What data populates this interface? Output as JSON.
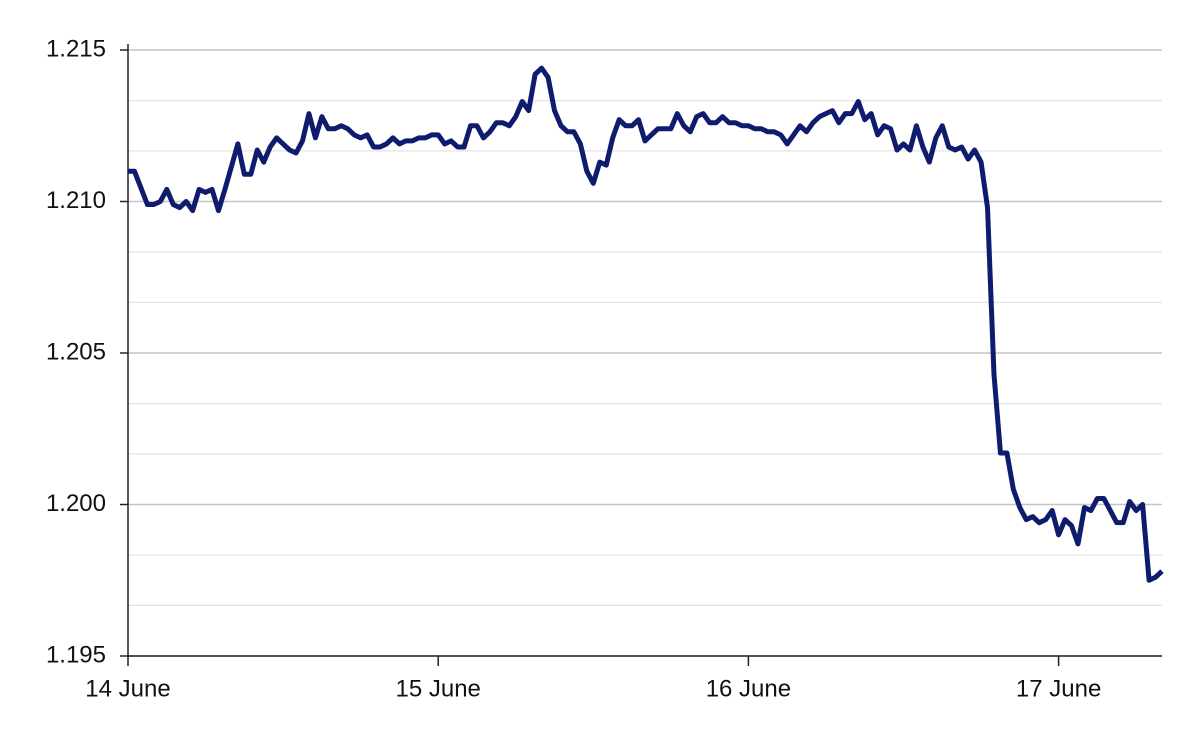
{
  "chart_data": {
    "type": "line",
    "x": [
      0,
      0.5,
      1.5,
      2,
      2.5,
      3,
      3.5,
      4,
      4.5,
      5,
      5.5,
      6,
      6.5,
      7,
      7.5,
      8.5,
      9,
      9.5,
      10,
      10.5,
      11,
      11.5,
      12,
      12.5,
      13,
      13.5,
      14,
      14.5,
      15,
      15.5,
      16,
      16.5,
      17,
      17.5,
      18,
      18.5,
      19,
      19.5,
      20,
      20.5,
      21,
      21.5,
      22,
      22.5,
      23,
      23.5,
      24,
      24.5,
      25,
      25.5,
      26,
      26.5,
      27,
      27.5,
      28,
      28.5,
      29,
      29.5,
      30,
      30.5,
      31,
      31.5,
      32,
      32.5,
      33,
      33.5,
      34,
      34.5,
      35,
      35.5,
      36,
      36.5,
      37,
      37.5,
      38,
      38.5,
      39,
      39.5,
      40,
      40.5,
      41,
      41.5,
      42,
      42.5,
      43,
      43.5,
      44,
      44.5,
      45,
      45.5,
      46,
      46.5,
      47,
      47.5,
      48,
      48.5,
      49,
      49.5,
      50,
      50.5,
      51,
      51.5,
      52,
      52.5,
      53,
      53.5,
      54,
      54.5,
      55,
      55.5,
      56,
      56.5,
      57,
      57.5,
      58,
      58.5,
      59,
      59.5,
      60,
      60.5,
      61,
      61.5,
      62,
      62.5,
      63,
      63.5,
      64,
      64.5,
      65,
      65.5,
      66,
      66.5,
      67,
      67.5,
      68,
      68.5,
      69,
      69.5,
      70,
      70.5,
      71,
      71.5,
      72,
      72.5,
      73,
      73.5,
      74,
      74.5,
      75,
      75.5,
      76,
      76.5,
      77,
      77.5,
      78,
      78.5,
      79,
      79.5,
      80
    ],
    "series": [
      {
        "color": "#0f1c6e",
        "values": [
          1.211,
          1.211,
          1.2099,
          1.2099,
          1.21,
          1.2104,
          1.2099,
          1.2098,
          1.21,
          1.2097,
          1.2104,
          1.2103,
          1.2104,
          1.2097,
          1.2104,
          1.2119,
          1.2109,
          1.2109,
          1.2117,
          1.2113,
          1.2118,
          1.2121,
          1.2119,
          1.2117,
          1.2116,
          1.212,
          1.2129,
          1.2121,
          1.2128,
          1.2124,
          1.2124,
          1.2125,
          1.2124,
          1.2122,
          1.2121,
          1.2122,
          1.2118,
          1.2118,
          1.2119,
          1.2121,
          1.2119,
          1.212,
          1.212,
          1.2121,
          1.2121,
          1.2122,
          1.2122,
          1.2119,
          1.212,
          1.2118,
          1.2118,
          1.2125,
          1.2125,
          1.2121,
          1.2123,
          1.2126,
          1.2126,
          1.2125,
          1.2128,
          1.2133,
          1.213,
          1.2142,
          1.2144,
          1.2141,
          1.213,
          1.2125,
          1.2123,
          1.2123,
          1.2119,
          1.211,
          1.2106,
          1.2113,
          1.2112,
          1.2121,
          1.2127,
          1.2125,
          1.2125,
          1.2127,
          1.212,
          1.2122,
          1.2124,
          1.2124,
          1.2124,
          1.2129,
          1.2125,
          1.2123,
          1.2128,
          1.2129,
          1.2126,
          1.2126,
          1.2128,
          1.2126,
          1.2126,
          1.2125,
          1.2125,
          1.2124,
          1.2124,
          1.2123,
          1.2123,
          1.2122,
          1.2119,
          1.2122,
          1.2125,
          1.2123,
          1.2126,
          1.2128,
          1.2129,
          1.213,
          1.2126,
          1.2129,
          1.2129,
          1.2133,
          1.2127,
          1.2129,
          1.2122,
          1.2125,
          1.2124,
          1.2117,
          1.2119,
          1.2117,
          1.2125,
          1.2118,
          1.2113,
          1.2121,
          1.2125,
          1.2118,
          1.2117,
          1.2118,
          1.2114,
          1.2117,
          1.2113,
          1.2098,
          1.2043,
          1.2017,
          1.2017,
          1.2005,
          1.1999,
          1.1995,
          1.1996,
          1.1994,
          1.1995,
          1.1998,
          1.199,
          1.1995,
          1.1993,
          1.1987,
          1.1999,
          1.1998,
          1.2002,
          1.2002,
          1.1998,
          1.1994,
          1.1994,
          1.2001,
          1.1998,
          1.2,
          1.1975,
          1.1976,
          1.1978
        ]
      }
    ],
    "xlim": [
      0,
      80
    ],
    "xticks": [
      {
        "value": 0,
        "label": "14 June"
      },
      {
        "value": 24,
        "label": "15 June"
      },
      {
        "value": 48,
        "label": "16 June"
      },
      {
        "value": 72,
        "label": "17 June"
      }
    ],
    "ylim": [
      1.195,
      1.215
    ],
    "yticks": [
      {
        "value": 1.195,
        "label": "1.195"
      },
      {
        "value": 1.2,
        "label": "1.200"
      },
      {
        "value": 1.205,
        "label": "1.205"
      },
      {
        "value": 1.21,
        "label": "1.210"
      },
      {
        "value": 1.215,
        "label": "1.215"
      }
    ],
    "y_minor_grid": [
      1.19667,
      1.19833,
      1.20167,
      1.20333,
      1.20667,
      1.20833,
      1.21167,
      1.21333
    ],
    "grid": true
  }
}
